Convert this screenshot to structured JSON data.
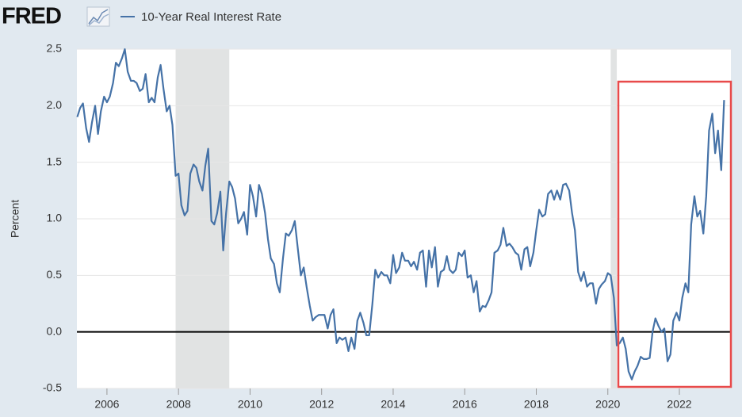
{
  "logo": "FRED",
  "chart_data": {
    "type": "line",
    "ylabel": "Percent",
    "series": [
      {
        "name": "10-Year Real Interest Rate",
        "color": "#4572a7",
        "x": [
          2005.17,
          2005.25,
          2005.33,
          2005.42,
          2005.5,
          2005.58,
          2005.67,
          2005.75,
          2005.83,
          2005.92,
          2006.0,
          2006.08,
          2006.17,
          2006.25,
          2006.33,
          2006.42,
          2006.5,
          2006.58,
          2006.67,
          2006.75,
          2006.83,
          2006.92,
          2007.0,
          2007.08,
          2007.17,
          2007.25,
          2007.33,
          2007.42,
          2007.5,
          2007.58,
          2007.67,
          2007.75,
          2007.83,
          2007.92,
          2008.0,
          2008.08,
          2008.17,
          2008.25,
          2008.33,
          2008.42,
          2008.5,
          2008.58,
          2008.67,
          2008.75,
          2008.83,
          2008.92,
          2009.0,
          2009.08,
          2009.17,
          2009.25,
          2009.33,
          2009.42,
          2009.5,
          2009.58,
          2009.67,
          2009.75,
          2009.83,
          2009.92,
          2010.0,
          2010.08,
          2010.17,
          2010.25,
          2010.33,
          2010.42,
          2010.5,
          2010.58,
          2010.67,
          2010.75,
          2010.83,
          2010.92,
          2011.0,
          2011.08,
          2011.17,
          2011.25,
          2011.33,
          2011.42,
          2011.5,
          2011.58,
          2011.67,
          2011.75,
          2011.83,
          2011.92,
          2012.0,
          2012.08,
          2012.17,
          2012.25,
          2012.33,
          2012.42,
          2012.5,
          2012.58,
          2012.67,
          2012.75,
          2012.83,
          2012.92,
          2013.0,
          2013.08,
          2013.17,
          2013.25,
          2013.33,
          2013.42,
          2013.5,
          2013.58,
          2013.67,
          2013.75,
          2013.83,
          2013.92,
          2014.0,
          2014.08,
          2014.17,
          2014.25,
          2014.33,
          2014.42,
          2014.5,
          2014.58,
          2014.67,
          2014.75,
          2014.83,
          2014.92,
          2015.0,
          2015.08,
          2015.17,
          2015.25,
          2015.33,
          2015.42,
          2015.5,
          2015.58,
          2015.67,
          2015.75,
          2015.83,
          2015.92,
          2016.0,
          2016.08,
          2016.17,
          2016.25,
          2016.33,
          2016.42,
          2016.5,
          2016.58,
          2016.67,
          2016.75,
          2016.83,
          2016.92,
          2017.0,
          2017.08,
          2017.17,
          2017.25,
          2017.33,
          2017.42,
          2017.5,
          2017.58,
          2017.67,
          2017.75,
          2017.83,
          2017.92,
          2018.0,
          2018.08,
          2018.17,
          2018.25,
          2018.33,
          2018.42,
          2018.5,
          2018.58,
          2018.67,
          2018.75,
          2018.83,
          2018.92,
          2019.0,
          2019.08,
          2019.17,
          2019.25,
          2019.33,
          2019.42,
          2019.5,
          2019.58,
          2019.67,
          2019.75,
          2019.83,
          2019.92,
          2020.0,
          2020.08,
          2020.17,
          2020.25,
          2020.33,
          2020.42,
          2020.5,
          2020.58,
          2020.67,
          2020.75,
          2020.83,
          2020.92,
          2021.0,
          2021.08,
          2021.17,
          2021.25,
          2021.33,
          2021.42,
          2021.5,
          2021.58,
          2021.67,
          2021.75,
          2021.83,
          2021.92,
          2022.0,
          2022.08,
          2022.17,
          2022.25,
          2022.33,
          2022.42,
          2022.5,
          2022.58,
          2022.67,
          2022.75,
          2022.83,
          2022.92,
          2023.0,
          2023.08,
          2023.17,
          2023.25
        ],
        "values": [
          1.9,
          1.98,
          2.02,
          1.8,
          1.68,
          1.85,
          2.0,
          1.75,
          1.95,
          2.08,
          2.03,
          2.08,
          2.2,
          2.38,
          2.35,
          2.42,
          2.5,
          2.3,
          2.22,
          2.22,
          2.2,
          2.13,
          2.15,
          2.28,
          2.03,
          2.07,
          2.03,
          2.25,
          2.36,
          2.15,
          1.95,
          2.0,
          1.83,
          1.38,
          1.4,
          1.12,
          1.03,
          1.07,
          1.4,
          1.48,
          1.45,
          1.33,
          1.25,
          1.47,
          1.62,
          0.98,
          0.95,
          1.05,
          1.24,
          0.72,
          1.05,
          1.33,
          1.28,
          1.18,
          0.96,
          1.0,
          1.06,
          0.86,
          1.3,
          1.2,
          1.02,
          1.3,
          1.22,
          1.05,
          0.82,
          0.65,
          0.6,
          0.43,
          0.35,
          0.65,
          0.87,
          0.85,
          0.9,
          0.98,
          0.75,
          0.5,
          0.57,
          0.4,
          0.23,
          0.1,
          0.13,
          0.15,
          0.15,
          0.15,
          0.03,
          0.15,
          0.2,
          -0.1,
          -0.05,
          -0.07,
          -0.05,
          -0.17,
          -0.05,
          -0.15,
          0.1,
          0.17,
          0.08,
          -0.03,
          -0.03,
          0.25,
          0.55,
          0.48,
          0.53,
          0.5,
          0.5,
          0.43,
          0.68,
          0.52,
          0.57,
          0.7,
          0.63,
          0.63,
          0.58,
          0.62,
          0.55,
          0.7,
          0.72,
          0.4,
          0.72,
          0.57,
          0.75,
          0.4,
          0.53,
          0.55,
          0.67,
          0.55,
          0.52,
          0.55,
          0.7,
          0.67,
          0.72,
          0.48,
          0.5,
          0.35,
          0.45,
          0.18,
          0.23,
          0.22,
          0.28,
          0.35,
          0.7,
          0.72,
          0.77,
          0.92,
          0.76,
          0.78,
          0.75,
          0.7,
          0.68,
          0.55,
          0.73,
          0.75,
          0.58,
          0.7,
          0.9,
          1.08,
          1.02,
          1.04,
          1.22,
          1.25,
          1.17,
          1.25,
          1.17,
          1.3,
          1.31,
          1.25,
          1.05,
          0.9,
          0.53,
          0.45,
          0.53,
          0.4,
          0.43,
          0.43,
          0.25,
          0.38,
          0.42,
          0.45,
          0.52,
          0.5,
          0.3,
          -0.12,
          -0.1,
          -0.05,
          -0.15,
          -0.35,
          -0.42,
          -0.35,
          -0.3,
          -0.22,
          -0.24,
          -0.24,
          -0.23,
          0.0,
          0.12,
          0.05,
          0.0,
          0.03,
          -0.26,
          -0.2,
          0.1,
          0.17,
          0.1,
          0.3,
          0.43,
          0.35,
          0.95,
          1.2,
          1.02,
          1.07,
          0.87,
          1.2,
          1.78,
          1.93,
          1.58,
          1.78,
          1.43,
          2.05
        ]
      }
    ],
    "recessions": [
      [
        2007.92,
        2009.42
      ],
      [
        2020.08,
        2020.25
      ]
    ],
    "xlim": [
      2005.16,
      2023.44
    ],
    "xticks": [
      2006,
      2008,
      2010,
      2012,
      2014,
      2016,
      2018,
      2020,
      2022
    ],
    "ylim": [
      -0.5,
      2.5
    ],
    "yticks": [
      -0.5,
      {
        "value": 0,
        "label": "0.0"
      },
      0.5,
      {
        "value": 1,
        "label": "1.0"
      },
      1.5,
      {
        "value": 2,
        "label": "2.0"
      },
      2.5
    ],
    "grid": true
  }
}
